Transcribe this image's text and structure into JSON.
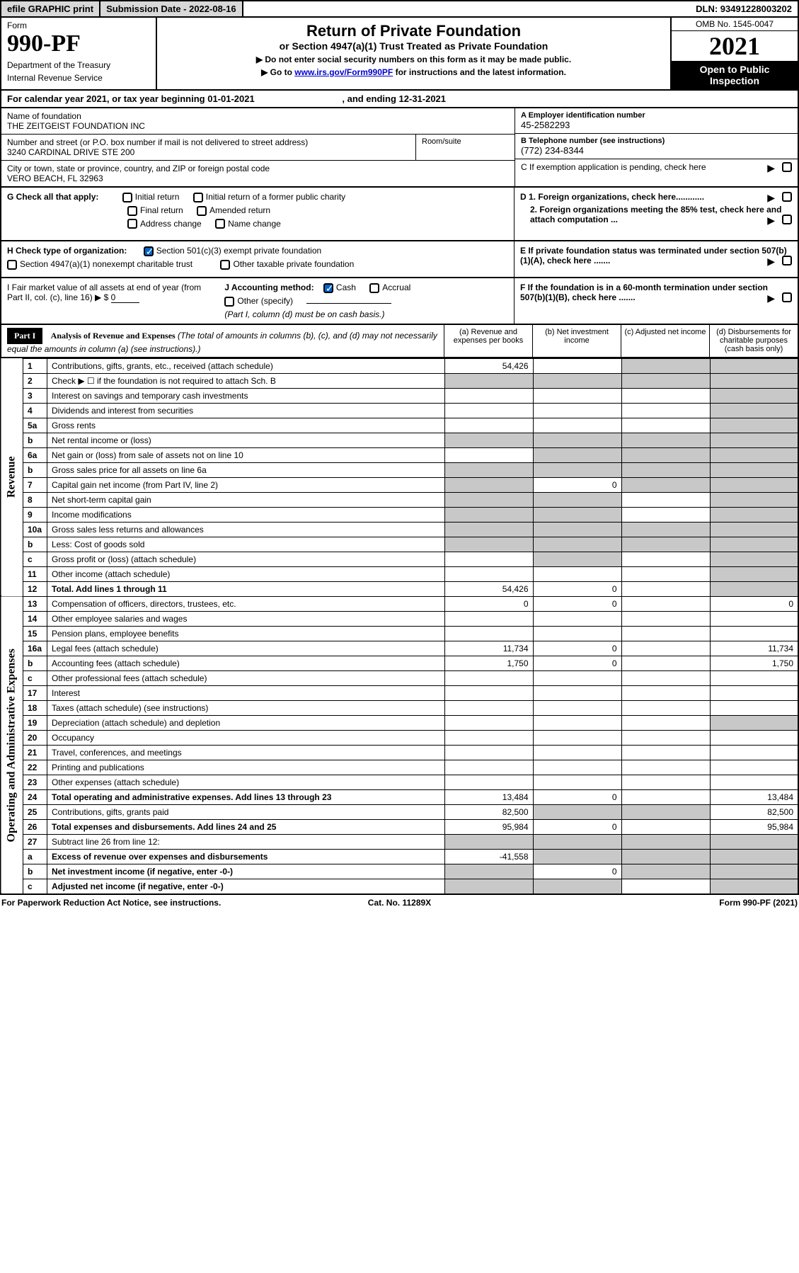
{
  "topbar": {
    "efile": "efile GRAPHIC print",
    "submission": "Submission Date - 2022-08-16",
    "dln": "DLN: 93491228003202"
  },
  "header": {
    "formWord": "Form",
    "formNo": "990-PF",
    "dept": "Department of the Treasury",
    "irs": "Internal Revenue Service",
    "title": "Return of Private Foundation",
    "subtitle": "or Section 4947(a)(1) Trust Treated as Private Foundation",
    "note1": "▶ Do not enter social security numbers on this form as it may be made public.",
    "note2a": "▶ Go to ",
    "note2link": "www.irs.gov/Form990PF",
    "note2b": " for instructions and the latest information.",
    "omb": "OMB No. 1545-0047",
    "year": "2021",
    "open": "Open to Public Inspection"
  },
  "calYear": {
    "prefix": "For calendar year 2021, or tax year beginning 01-01-2021",
    "mid": ", and ending 12-31-2021"
  },
  "id": {
    "nameLbl": "Name of foundation",
    "name": "THE ZEITGEIST FOUNDATION INC",
    "addrLbl": "Number and street (or P.O. box number if mail is not delivered to street address)",
    "addr": "3240 CARDINAL DRIVE STE 200",
    "roomLbl": "Room/suite",
    "cityLbl": "City or town, state or province, country, and ZIP or foreign postal code",
    "city": "VERO BEACH, FL  32963",
    "aLbl": "A Employer identification number",
    "a": "45-2582293",
    "bLbl": "B Telephone number (see instructions)",
    "b": "(772) 234-8344",
    "cLbl": "C If exemption application is pending, check here"
  },
  "g": {
    "label": "G Check all that apply:",
    "opts": [
      "Initial return",
      "Initial return of a former public charity",
      "Final return",
      "Amended return",
      "Address change",
      "Name change"
    ]
  },
  "h": {
    "label": "H Check type of organization:",
    "opt1": "Section 501(c)(3) exempt private foundation",
    "opt2": "Section 4947(a)(1) nonexempt charitable trust",
    "opt3": "Other taxable private foundation"
  },
  "i": {
    "label": "I Fair market value of all assets at end of year (from Part II, col. (c), line 16) ▶ $",
    "val": "0"
  },
  "j": {
    "label": "J Accounting method:",
    "cash": "Cash",
    "accrual": "Accrual",
    "other": "Other (specify)",
    "note": "(Part I, column (d) must be on cash basis.)"
  },
  "d": {
    "d1": "D 1. Foreign organizations, check here............",
    "d2": "2. Foreign organizations meeting the 85% test, check here and attach computation ...",
    "e": "E If private foundation status was terminated under section 507(b)(1)(A), check here .......",
    "f": "F If the foundation is in a 60-month termination under section 507(b)(1)(B), check here ......."
  },
  "part1": {
    "tag": "Part I",
    "title": "Analysis of Revenue and Expenses",
    "note": "(The total of amounts in columns (b), (c), and (d) may not necessarily equal the amounts in column (a) (see instructions).)",
    "colA": "(a) Revenue and expenses per books",
    "colB": "(b) Net investment income",
    "colC": "(c) Adjusted net income",
    "colD": "(d) Disbursements for charitable purposes (cash basis only)"
  },
  "sideLabels": {
    "rev": "Revenue",
    "exp": "Operating and Administrative Expenses"
  },
  "rows": [
    {
      "n": "1",
      "d": "Contributions, gifts, grants, etc., received (attach schedule)",
      "a": "54,426",
      "b": "",
      "c": "g",
      "dd": "g"
    },
    {
      "n": "2",
      "d": "Check ▶ ☐ if the foundation is not required to attach Sch. B",
      "a": "g",
      "b": "g",
      "c": "g",
      "dd": "g"
    },
    {
      "n": "3",
      "d": "Interest on savings and temporary cash investments",
      "a": "",
      "b": "",
      "c": "",
      "dd": "g"
    },
    {
      "n": "4",
      "d": "Dividends and interest from securities",
      "a": "",
      "b": "",
      "c": "",
      "dd": "g"
    },
    {
      "n": "5a",
      "d": "Gross rents",
      "a": "",
      "b": "",
      "c": "",
      "dd": "g"
    },
    {
      "n": "b",
      "d": "Net rental income or (loss)",
      "a": "g",
      "b": "g",
      "c": "g",
      "dd": "g"
    },
    {
      "n": "6a",
      "d": "Net gain or (loss) from sale of assets not on line 10",
      "a": "",
      "b": "g",
      "c": "g",
      "dd": "g"
    },
    {
      "n": "b",
      "d": "Gross sales price for all assets on line 6a",
      "a": "g",
      "b": "g",
      "c": "g",
      "dd": "g"
    },
    {
      "n": "7",
      "d": "Capital gain net income (from Part IV, line 2)",
      "a": "g",
      "b": "0",
      "c": "g",
      "dd": "g"
    },
    {
      "n": "8",
      "d": "Net short-term capital gain",
      "a": "g",
      "b": "g",
      "c": "",
      "dd": "g"
    },
    {
      "n": "9",
      "d": "Income modifications",
      "a": "g",
      "b": "g",
      "c": "",
      "dd": "g"
    },
    {
      "n": "10a",
      "d": "Gross sales less returns and allowances",
      "a": "g",
      "b": "g",
      "c": "g",
      "dd": "g"
    },
    {
      "n": "b",
      "d": "Less: Cost of goods sold",
      "a": "g",
      "b": "g",
      "c": "g",
      "dd": "g"
    },
    {
      "n": "c",
      "d": "Gross profit or (loss) (attach schedule)",
      "a": "",
      "b": "g",
      "c": "",
      "dd": "g"
    },
    {
      "n": "11",
      "d": "Other income (attach schedule)",
      "a": "",
      "b": "",
      "c": "",
      "dd": "g"
    },
    {
      "n": "12",
      "d": "Total. Add lines 1 through 11",
      "a": "54,426",
      "b": "0",
      "c": "",
      "dd": "g",
      "bold": true
    }
  ],
  "expRows": [
    {
      "n": "13",
      "d": "Compensation of officers, directors, trustees, etc.",
      "a": "0",
      "b": "0",
      "c": "",
      "dd": "0"
    },
    {
      "n": "14",
      "d": "Other employee salaries and wages",
      "a": "",
      "b": "",
      "c": "",
      "dd": ""
    },
    {
      "n": "15",
      "d": "Pension plans, employee benefits",
      "a": "",
      "b": "",
      "c": "",
      "dd": ""
    },
    {
      "n": "16a",
      "d": "Legal fees (attach schedule)",
      "a": "11,734",
      "b": "0",
      "c": "",
      "dd": "11,734"
    },
    {
      "n": "b",
      "d": "Accounting fees (attach schedule)",
      "a": "1,750",
      "b": "0",
      "c": "",
      "dd": "1,750"
    },
    {
      "n": "c",
      "d": "Other professional fees (attach schedule)",
      "a": "",
      "b": "",
      "c": "",
      "dd": ""
    },
    {
      "n": "17",
      "d": "Interest",
      "a": "",
      "b": "",
      "c": "",
      "dd": ""
    },
    {
      "n": "18",
      "d": "Taxes (attach schedule) (see instructions)",
      "a": "",
      "b": "",
      "c": "",
      "dd": ""
    },
    {
      "n": "19",
      "d": "Depreciation (attach schedule) and depletion",
      "a": "",
      "b": "",
      "c": "",
      "dd": "g"
    },
    {
      "n": "20",
      "d": "Occupancy",
      "a": "",
      "b": "",
      "c": "",
      "dd": ""
    },
    {
      "n": "21",
      "d": "Travel, conferences, and meetings",
      "a": "",
      "b": "",
      "c": "",
      "dd": ""
    },
    {
      "n": "22",
      "d": "Printing and publications",
      "a": "",
      "b": "",
      "c": "",
      "dd": ""
    },
    {
      "n": "23",
      "d": "Other expenses (attach schedule)",
      "a": "",
      "b": "",
      "c": "",
      "dd": ""
    },
    {
      "n": "24",
      "d": "Total operating and administrative expenses. Add lines 13 through 23",
      "a": "13,484",
      "b": "0",
      "c": "",
      "dd": "13,484",
      "bold": true
    },
    {
      "n": "25",
      "d": "Contributions, gifts, grants paid",
      "a": "82,500",
      "b": "g",
      "c": "g",
      "dd": "82,500"
    },
    {
      "n": "26",
      "d": "Total expenses and disbursements. Add lines 24 and 25",
      "a": "95,984",
      "b": "0",
      "c": "",
      "dd": "95,984",
      "bold": true
    },
    {
      "n": "27",
      "d": "Subtract line 26 from line 12:",
      "a": "g",
      "b": "g",
      "c": "g",
      "dd": "g"
    },
    {
      "n": "a",
      "d": "Excess of revenue over expenses and disbursements",
      "a": "-41,558",
      "b": "g",
      "c": "g",
      "dd": "g",
      "bold": true
    },
    {
      "n": "b",
      "d": "Net investment income (if negative, enter -0-)",
      "a": "g",
      "b": "0",
      "c": "g",
      "dd": "g",
      "bold": true
    },
    {
      "n": "c",
      "d": "Adjusted net income (if negative, enter -0-)",
      "a": "g",
      "b": "g",
      "c": "",
      "dd": "g",
      "bold": true
    }
  ],
  "footer": {
    "left": "For Paperwork Reduction Act Notice, see instructions.",
    "mid": "Cat. No. 11289X",
    "right": "Form 990-PF (2021)"
  }
}
